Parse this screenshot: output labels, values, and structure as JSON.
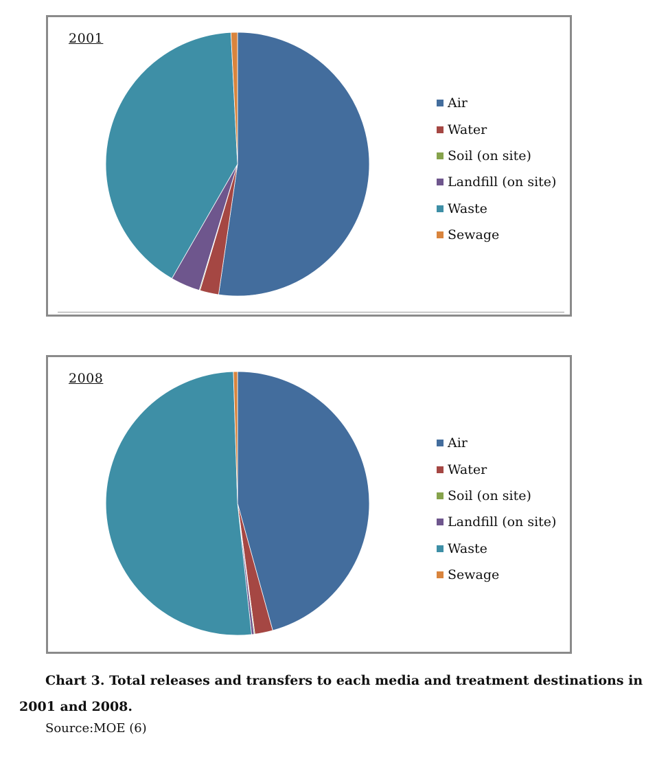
{
  "colors": {
    "Air": "#436D9D",
    "Water": "#A54743",
    "Soil (on site)": "#86A34C",
    "Landfill (on site)": "#6E568D",
    "Waste": "#3E8FA6",
    "Sewage": "#D9843D"
  },
  "chart_data": [
    {
      "type": "pie",
      "title": "2001",
      "categories": [
        "Air",
        "Water",
        "Soil (on site)",
        "Landfill (on site)",
        "Waste",
        "Sewage"
      ],
      "values": [
        52.3,
        2.3,
        0.1,
        3.6,
        40.9,
        0.8
      ],
      "legend_position": "right"
    },
    {
      "type": "pie",
      "title": "2008",
      "categories": [
        "Air",
        "Water",
        "Soil (on site)",
        "Landfill (on site)",
        "Waste",
        "Sewage"
      ],
      "values": [
        45.7,
        2.2,
        0.1,
        0.3,
        51.2,
        0.5
      ],
      "legend_position": "right"
    }
  ],
  "caption": "Chart 3. Total releases and transfers to each media and treatment destinations in 2001 and 2008.",
  "source": "Source:MOE (6)"
}
